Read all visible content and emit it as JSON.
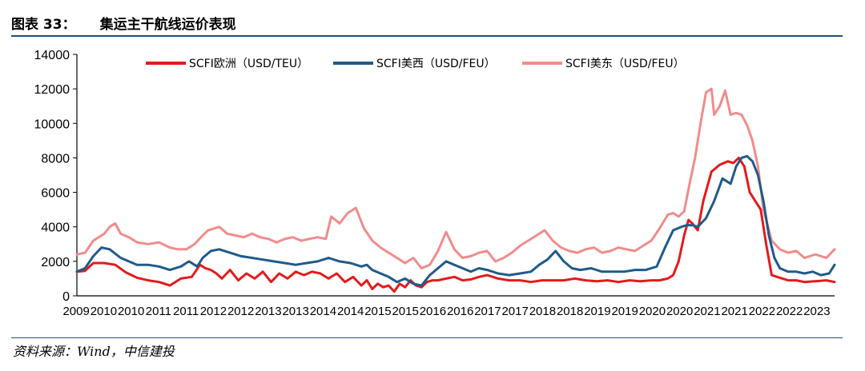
{
  "header": {
    "label": "图表 33：",
    "title": "集运主干航线运价表现"
  },
  "source": "资料来源：Wind，中信建投",
  "colors": {
    "rule": "#1f4e79",
    "europe": "#e41a1c",
    "us_west": "#1f5a8a",
    "us_east": "#f08c8c"
  },
  "chart_data": {
    "type": "line",
    "title": "",
    "xlabel": "",
    "ylabel": "",
    "ylim": [
      0,
      14000
    ],
    "yticks": [
      0,
      2000,
      4000,
      6000,
      8000,
      10000,
      12000,
      14000
    ],
    "x_range": [
      2009.7,
      2023.55
    ],
    "x_tick_labels": [
      "2009",
      "2010",
      "2010",
      "2011",
      "2011",
      "2012",
      "2012",
      "2013",
      "2013",
      "2014",
      "2014",
      "2015",
      "2015",
      "2016",
      "2016",
      "2017",
      "2017",
      "2018",
      "2018",
      "2019",
      "2019",
      "2020",
      "2020",
      "2021",
      "2021",
      "2022",
      "2022",
      "2023"
    ],
    "legend_position": "top",
    "grid": false,
    "series": [
      {
        "name": "SCFI欧洲（USD/TEU）",
        "color": "#e41a1c",
        "x": [
          2009.7,
          2009.85,
          2010.0,
          2010.2,
          2010.4,
          2010.6,
          2010.8,
          2011.0,
          2011.2,
          2011.4,
          2011.6,
          2011.8,
          2011.95,
          2012.05,
          2012.15,
          2012.25,
          2012.35,
          2012.5,
          2012.65,
          2012.8,
          2012.95,
          2013.1,
          2013.25,
          2013.4,
          2013.55,
          2013.7,
          2013.85,
          2014.0,
          2014.15,
          2014.3,
          2014.45,
          2014.6,
          2014.75,
          2014.9,
          2015.0,
          2015.1,
          2015.2,
          2015.3,
          2015.4,
          2015.5,
          2015.6,
          2015.7,
          2015.8,
          2015.9,
          2016.0,
          2016.1,
          2016.2,
          2016.3,
          2016.45,
          2016.6,
          2016.75,
          2016.9,
          2017.05,
          2017.2,
          2017.4,
          2017.6,
          2017.8,
          2018.0,
          2018.2,
          2018.4,
          2018.6,
          2018.8,
          2019.0,
          2019.2,
          2019.4,
          2019.6,
          2019.8,
          2020.0,
          2020.2,
          2020.35,
          2020.5,
          2020.6,
          2020.7,
          2020.8,
          2020.88,
          2020.95,
          2021.05,
          2021.15,
          2021.3,
          2021.45,
          2021.6,
          2021.7,
          2021.8,
          2021.9,
          2022.0,
          2022.1,
          2022.2,
          2022.3,
          2022.4,
          2022.5,
          2022.6,
          2022.7,
          2022.85,
          2023.0,
          2023.2,
          2023.4,
          2023.55
        ],
        "values": [
          1400,
          1450,
          1900,
          1900,
          1800,
          1350,
          1050,
          900,
          800,
          600,
          1000,
          1100,
          1800,
          1600,
          1500,
          1300,
          1000,
          1500,
          900,
          1300,
          1000,
          1400,
          800,
          1300,
          1000,
          1400,
          1200,
          1400,
          1300,
          1000,
          1300,
          800,
          1100,
          600,
          900,
          400,
          700,
          500,
          600,
          250,
          700,
          500,
          900,
          600,
          500,
          800,
          900,
          900,
          1000,
          1100,
          900,
          950,
          1100,
          1200,
          1000,
          900,
          900,
          800,
          900,
          900,
          900,
          1000,
          900,
          850,
          900,
          800,
          900,
          850,
          900,
          900,
          1000,
          1200,
          2000,
          3500,
          4400,
          4200,
          3800,
          5500,
          7200,
          7600,
          7800,
          7700,
          8000,
          7500,
          6000,
          5500,
          5000,
          3000,
          1200,
          1100,
          1000,
          900,
          900,
          800,
          850,
          900,
          800
        ]
      },
      {
        "name": "SCFI美西（USD/FEU）",
        "color": "#1f5a8a",
        "x": [
          2009.7,
          2009.85,
          2010.0,
          2010.15,
          2010.3,
          2010.5,
          2010.65,
          2010.8,
          2011.0,
          2011.2,
          2011.4,
          2011.6,
          2011.75,
          2011.9,
          2012.0,
          2012.15,
          2012.3,
          2012.5,
          2012.7,
          2012.9,
          2013.1,
          2013.3,
          2013.5,
          2013.7,
          2013.9,
          2014.1,
          2014.3,
          2014.5,
          2014.7,
          2014.9,
          2015.0,
          2015.1,
          2015.25,
          2015.4,
          2015.55,
          2015.7,
          2015.85,
          2016.0,
          2016.15,
          2016.3,
          2016.45,
          2016.6,
          2016.75,
          2016.9,
          2017.05,
          2017.2,
          2017.4,
          2017.6,
          2017.8,
          2018.0,
          2018.15,
          2018.3,
          2018.45,
          2018.6,
          2018.75,
          2018.9,
          2019.1,
          2019.3,
          2019.5,
          2019.7,
          2019.9,
          2020.1,
          2020.3,
          2020.45,
          2020.6,
          2020.75,
          2020.85,
          2020.95,
          2021.05,
          2021.2,
          2021.35,
          2021.5,
          2021.65,
          2021.75,
          2021.85,
          2021.95,
          2022.05,
          2022.15,
          2022.25,
          2022.35,
          2022.45,
          2022.55,
          2022.7,
          2022.85,
          2023.0,
          2023.15,
          2023.3,
          2023.45,
          2023.55
        ],
        "values": [
          1400,
          1600,
          2300,
          2800,
          2700,
          2200,
          2000,
          1800,
          1800,
          1700,
          1500,
          1700,
          2000,
          1700,
          2200,
          2600,
          2700,
          2500,
          2300,
          2200,
          2100,
          2000,
          1900,
          1800,
          1900,
          2000,
          2200,
          2000,
          1900,
          1700,
          1800,
          1500,
          1300,
          1100,
          800,
          1000,
          700,
          600,
          1200,
          1600,
          2000,
          1800,
          1600,
          1400,
          1600,
          1500,
          1300,
          1200,
          1300,
          1400,
          1800,
          2100,
          2600,
          2000,
          1600,
          1500,
          1600,
          1400,
          1400,
          1400,
          1500,
          1500,
          1700,
          2800,
          3800,
          4000,
          4100,
          4100,
          4000,
          4500,
          5500,
          6800,
          6500,
          7500,
          8000,
          8100,
          7800,
          7000,
          5500,
          3500,
          2200,
          1600,
          1400,
          1400,
          1300,
          1400,
          1200,
          1300,
          1800
        ]
      },
      {
        "name": "SCFI美东（USD/FEU）",
        "color": "#f08c8c",
        "x": [
          2009.7,
          2009.85,
          2010.0,
          2010.1,
          2010.2,
          2010.3,
          2010.4,
          2010.5,
          2010.65,
          2010.8,
          2011.0,
          2011.2,
          2011.4,
          2011.55,
          2011.7,
          2011.85,
          2012.0,
          2012.1,
          2012.2,
          2012.3,
          2012.45,
          2012.6,
          2012.75,
          2012.9,
          2013.05,
          2013.2,
          2013.35,
          2013.5,
          2013.65,
          2013.8,
          2013.95,
          2014.1,
          2014.25,
          2014.35,
          2014.5,
          2014.65,
          2014.8,
          2014.95,
          2015.1,
          2015.25,
          2015.4,
          2015.55,
          2015.7,
          2015.85,
          2016.0,
          2016.15,
          2016.3,
          2016.45,
          2016.6,
          2016.75,
          2016.9,
          2017.05,
          2017.2,
          2017.35,
          2017.5,
          2017.65,
          2017.8,
          2017.95,
          2018.1,
          2018.25,
          2018.4,
          2018.55,
          2018.7,
          2018.85,
          2019.0,
          2019.15,
          2019.3,
          2019.45,
          2019.6,
          2019.75,
          2019.9,
          2020.05,
          2020.2,
          2020.35,
          2020.5,
          2020.6,
          2020.7,
          2020.8,
          2020.9,
          2021.0,
          2021.1,
          2021.2,
          2021.3,
          2021.35,
          2021.45,
          2021.55,
          2021.65,
          2021.75,
          2021.85,
          2021.95,
          2022.05,
          2022.15,
          2022.25,
          2022.4,
          2022.55,
          2022.7,
          2022.85,
          2023.0,
          2023.2,
          2023.4,
          2023.55
        ],
        "values": [
          2400,
          2500,
          3200,
          3400,
          3600,
          4000,
          4200,
          3600,
          3400,
          3100,
          3000,
          3100,
          2800,
          2700,
          2700,
          3000,
          3500,
          3800,
          3900,
          4000,
          3600,
          3500,
          3400,
          3600,
          3400,
          3300,
          3100,
          3300,
          3400,
          3200,
          3300,
          3400,
          3300,
          4600,
          4200,
          4800,
          5100,
          3900,
          3200,
          2800,
          2500,
          2200,
          1900,
          2200,
          1600,
          1800,
          2600,
          3700,
          2700,
          2200,
          2300,
          2500,
          2600,
          2000,
          2200,
          2500,
          2900,
          3200,
          3500,
          3800,
          3200,
          2800,
          2600,
          2500,
          2700,
          2800,
          2500,
          2600,
          2800,
          2700,
          2600,
          2900,
          3200,
          3900,
          4700,
          4800,
          4600,
          4900,
          6500,
          8000,
          10000,
          11800,
          12000,
          10500,
          11000,
          11900,
          10500,
          10600,
          10500,
          9900,
          9000,
          7500,
          5000,
          3200,
          2700,
          2500,
          2600,
          2200,
          2400,
          2200,
          2700
        ]
      }
    ]
  }
}
